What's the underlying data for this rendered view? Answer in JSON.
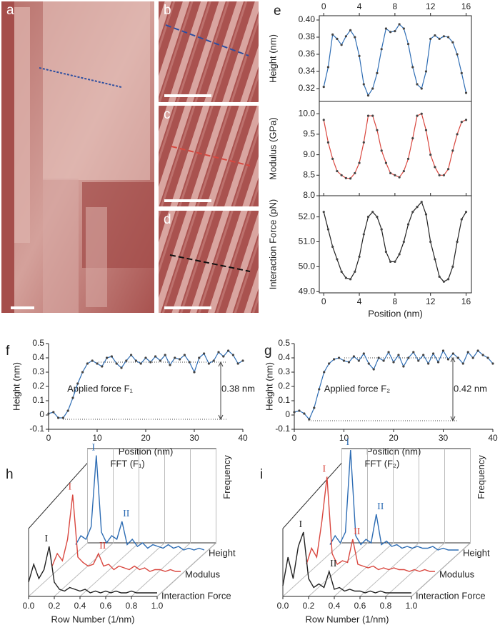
{
  "image_panels": [
    {
      "label": "a"
    },
    {
      "label": "b"
    },
    {
      "label": "c"
    },
    {
      "label": "d"
    }
  ],
  "chart_data": [
    {
      "type": "line",
      "panel_label": "e",
      "ylabel": "Height (nm)",
      "xaxis": "top",
      "x": [
        0,
        0.5,
        1,
        1.5,
        2,
        2.5,
        3,
        3.5,
        4,
        4.5,
        5,
        5.5,
        6,
        6.5,
        7,
        7.5,
        8,
        8.5,
        9,
        9.5,
        10,
        10.5,
        11,
        11.5,
        12,
        12.5,
        13,
        13.5,
        14,
        14.5,
        15,
        15.5,
        16
      ],
      "xlim": [
        -0.5,
        16.6
      ],
      "xticks": [
        0,
        4,
        8,
        12,
        16
      ],
      "ylim": [
        0.305,
        0.405
      ],
      "yticks": [
        0.32,
        0.34,
        0.36,
        0.38,
        {
          "value": 0.4,
          "label": "0.40"
        }
      ],
      "series": [
        {
          "name": "Height",
          "color": "#2e6db4",
          "values": [
            0.322,
            0.345,
            0.383,
            0.378,
            0.371,
            0.381,
            0.388,
            0.38,
            0.358,
            0.325,
            0.312,
            0.32,
            0.338,
            0.366,
            0.39,
            0.386,
            0.387,
            0.395,
            0.39,
            0.372,
            0.345,
            0.325,
            0.32,
            0.34,
            0.378,
            0.382,
            0.378,
            0.381,
            0.38,
            0.374,
            0.36,
            0.338,
            0.315
          ]
        }
      ]
    },
    {
      "type": "line",
      "ylabel": "Modulus (GPa)",
      "xaxis": "none",
      "x": [
        0,
        0.5,
        1,
        1.5,
        2,
        2.5,
        3,
        3.5,
        4,
        4.5,
        5,
        5.5,
        6,
        6.5,
        7,
        7.5,
        8,
        8.5,
        9,
        9.5,
        10,
        10.5,
        11,
        11.5,
        12,
        12.5,
        13,
        13.5,
        14,
        14.5,
        15,
        15.5,
        16
      ],
      "xlim": [
        -0.5,
        16.6
      ],
      "xticks": [
        0,
        4,
        8,
        12,
        16
      ],
      "ylim": [
        8.0,
        10.3
      ],
      "yticks": [
        {
          "value": 8,
          "label": "8.0"
        },
        8.5,
        {
          "value": 9,
          "label": "9.0"
        },
        9.5,
        {
          "value": 10,
          "label": "10.0"
        }
      ],
      "series": [
        {
          "name": "Modulus",
          "color": "#d9473f",
          "values": [
            9.85,
            9.3,
            8.9,
            8.6,
            8.5,
            8.43,
            8.42,
            8.55,
            8.8,
            9.3,
            9.95,
            9.95,
            9.6,
            9.1,
            8.8,
            8.55,
            8.5,
            8.45,
            8.6,
            8.9,
            9.4,
            9.95,
            10.0,
            9.6,
            9.0,
            8.7,
            8.5,
            8.5,
            8.65,
            9.1,
            9.5,
            9.8,
            9.85
          ]
        }
      ]
    },
    {
      "type": "line",
      "ylabel": "Interaction Force (pN)",
      "xlabel": "Position (nm)",
      "xaxis": "bottom",
      "x": [
        0,
        0.5,
        1,
        1.5,
        2,
        2.5,
        3,
        3.5,
        4,
        4.5,
        5,
        5.5,
        6,
        6.5,
        7,
        7.5,
        8,
        8.5,
        9,
        9.5,
        10,
        10.5,
        11,
        11.5,
        12,
        12.5,
        13,
        13.5,
        14,
        14.5,
        15,
        15.5,
        16
      ],
      "xlim": [
        -0.5,
        16.6
      ],
      "xticks": [
        0,
        4,
        8,
        12,
        16
      ],
      "ylim": [
        48.95,
        52.85
      ],
      "yticks": [
        {
          "value": 49,
          "label": "49.0"
        },
        {
          "value": 50,
          "label": "50.0"
        },
        {
          "value": 51,
          "label": "51.0"
        },
        {
          "value": 52,
          "label": "52.0"
        }
      ],
      "series": [
        {
          "name": "Interaction Force",
          "color": "#222222",
          "values": [
            52.2,
            51.5,
            50.8,
            50.3,
            49.8,
            49.55,
            49.5,
            49.8,
            50.4,
            51.3,
            52.0,
            52.2,
            52.0,
            51.5,
            50.6,
            50.2,
            50.2,
            50.5,
            51.0,
            51.7,
            52.2,
            52.4,
            52.6,
            52.1,
            51.0,
            50.3,
            49.6,
            49.4,
            49.5,
            50.0,
            51.0,
            51.9,
            52.2
          ]
        }
      ]
    },
    {
      "type": "line",
      "panel_label": "f",
      "ylabel": "Height (nm)",
      "xlabel": "Position (nm)",
      "xaxis": "bottom",
      "annotations": [
        "Applied force F₁",
        "0.38 nm"
      ],
      "hlines": [
        0.37,
        -0.03
      ],
      "x": [
        0,
        1,
        2,
        3,
        4,
        5,
        6,
        7,
        8,
        9,
        10,
        11,
        12,
        13,
        14,
        15,
        16,
        17,
        18,
        19,
        20,
        21,
        22,
        23,
        24,
        25,
        26,
        27,
        28,
        29,
        30,
        31,
        32,
        33,
        34,
        35,
        36,
        37,
        38,
        39,
        40
      ],
      "xlim": [
        0,
        40
      ],
      "xticks": [
        0,
        10,
        20,
        30,
        40
      ],
      "ylim": [
        -0.1,
        0.5
      ],
      "yticks": [
        -0.1,
        0,
        0.1,
        0.2,
        0.3,
        0.4,
        0.5
      ],
      "series": [
        {
          "name": "Height",
          "color": "#2e6db4",
          "values": [
            0.01,
            0.02,
            -0.02,
            -0.02,
            0.03,
            0.12,
            0.22,
            0.3,
            0.36,
            0.38,
            0.36,
            0.34,
            0.4,
            0.41,
            0.36,
            0.33,
            0.38,
            0.42,
            0.38,
            0.36,
            0.4,
            0.37,
            0.41,
            0.38,
            0.42,
            0.35,
            0.4,
            0.39,
            0.42,
            0.37,
            0.3,
            0.4,
            0.43,
            0.36,
            0.38,
            0.44,
            0.41,
            0.45,
            0.42,
            0.36,
            0.38
          ]
        }
      ]
    },
    {
      "type": "line",
      "panel_label": "g",
      "ylabel": "Height (nm)",
      "xlabel": "Position (nm)",
      "xaxis": "bottom",
      "annotations": [
        "Applied force F₂",
        "0.42 nm"
      ],
      "hlines": [
        0.4,
        -0.04
      ],
      "x": [
        0,
        1,
        2,
        3,
        4,
        5,
        6,
        7,
        8,
        9,
        10,
        11,
        12,
        13,
        14,
        15,
        16,
        17,
        18,
        19,
        20,
        21,
        22,
        23,
        24,
        25,
        26,
        27,
        28,
        29,
        30,
        31,
        32,
        33,
        34,
        35,
        36,
        37,
        38,
        39,
        40
      ],
      "xlim": [
        0,
        40
      ],
      "xticks": [
        0,
        10,
        20,
        30,
        40
      ],
      "ylim": [
        -0.1,
        0.5
      ],
      "yticks": [
        -0.1,
        0,
        0.1,
        0.2,
        0.3,
        0.4,
        0.5
      ],
      "series": [
        {
          "name": "Height",
          "color": "#2e6db4",
          "values": [
            0.02,
            0.03,
            0.01,
            -0.03,
            0.05,
            0.18,
            0.3,
            0.36,
            0.39,
            0.4,
            0.38,
            0.37,
            0.41,
            0.38,
            0.43,
            0.36,
            0.32,
            0.4,
            0.38,
            0.44,
            0.37,
            0.42,
            0.34,
            0.4,
            0.44,
            0.38,
            0.42,
            0.36,
            0.43,
            0.37,
            0.45,
            0.39,
            0.43,
            0.4,
            0.36,
            0.44,
            0.4,
            0.45,
            0.42,
            0.4,
            0.36
          ]
        }
      ]
    },
    {
      "type": "waterfall",
      "panel_label": "h",
      "title": "FFT (F₁)",
      "zlabel": "Frequency",
      "xlabel": "Row Number (1/nm)",
      "x": [
        0,
        0.04,
        0.08,
        0.12,
        0.16,
        0.2,
        0.24,
        0.28,
        0.32,
        0.36,
        0.4,
        0.44,
        0.48,
        0.52,
        0.56,
        0.6,
        0.64,
        0.68,
        0.72,
        0.76,
        0.8,
        0.84,
        0.88,
        0.92,
        0.96,
        1
      ],
      "xlim": [
        0,
        1
      ],
      "xticks": [
        {
          "value": 0,
          "label": "0.0"
        },
        0.2,
        0.4,
        0.6,
        0.8,
        {
          "value": 1,
          "label": "1.0"
        }
      ],
      "series": [
        {
          "name": "Height",
          "color": "#2e6db4",
          "peak_labels": [
            {
              "text": "I",
              "x": 0.16
            },
            {
              "text": "II",
              "x": 0.36
            }
          ],
          "values": [
            0.05,
            0.1,
            0.08,
            0.15,
            0.55,
            0.12,
            0.06,
            0.1,
            0.08,
            0.18,
            0.05,
            0.08,
            0.04,
            0.06,
            0.03,
            0.05,
            0.04,
            0.03,
            0.05,
            0.03,
            0.04,
            0.02,
            0.03,
            0.02,
            0.03,
            0.02
          ]
        },
        {
          "name": "Modulus",
          "color": "#d9473f",
          "peak_labels": [
            {
              "text": "I",
              "x": 0.16
            },
            {
              "text": "II",
              "x": 0.36
            }
          ],
          "values": [
            0.05,
            0.12,
            0.08,
            0.2,
            0.45,
            0.1,
            0.07,
            0.05,
            0.06,
            0.12,
            0.05,
            0.06,
            0.03,
            0.05,
            0.04,
            0.03,
            0.05,
            0.03,
            0.04,
            0.02,
            0.03,
            0.03,
            0.02,
            0.03,
            0.02,
            0.02
          ]
        },
        {
          "name": "Interaction Force",
          "color": "#222222",
          "peak_labels": [
            {
              "text": "I",
              "x": 0.16
            }
          ],
          "values": [
            0.08,
            0.18,
            0.1,
            0.15,
            0.28,
            0.08,
            0.04,
            0.03,
            0.05,
            0.04,
            0.03,
            0.04,
            0.02,
            0.03,
            0.02,
            0.03,
            0.02,
            0.03,
            0.02,
            0.02,
            0.03,
            0.02,
            0.02,
            0.02,
            0.02,
            0.02
          ]
        }
      ]
    },
    {
      "type": "waterfall",
      "panel_label": "i",
      "title": "FFT (F₂)",
      "zlabel": "Frequency",
      "xlabel": "Row Number (1/nm)",
      "x": [
        0,
        0.04,
        0.08,
        0.12,
        0.16,
        0.2,
        0.24,
        0.28,
        0.32,
        0.36,
        0.4,
        0.44,
        0.48,
        0.52,
        0.56,
        0.6,
        0.64,
        0.68,
        0.72,
        0.76,
        0.8,
        0.84,
        0.88,
        0.92,
        0.96,
        1
      ],
      "xlim": [
        0,
        1
      ],
      "xticks": [
        {
          "value": 0,
          "label": "0.0"
        },
        0.2,
        0.4,
        0.6,
        0.8,
        {
          "value": 1,
          "label": "1.0"
        }
      ],
      "series": [
        {
          "name": "Height",
          "color": "#2e6db4",
          "peak_labels": [
            {
              "text": "I",
              "x": 0.16
            },
            {
              "text": "II",
              "x": 0.36
            }
          ],
          "values": [
            0.05,
            0.1,
            0.06,
            0.12,
            0.58,
            0.1,
            0.05,
            0.08,
            0.06,
            0.22,
            0.05,
            0.07,
            0.04,
            0.05,
            0.03,
            0.04,
            0.03,
            0.04,
            0.03,
            0.03,
            0.04,
            0.02,
            0.03,
            0.02,
            0.02,
            0.02
          ]
        },
        {
          "name": "Modulus",
          "color": "#d9473f",
          "peak_labels": [
            {
              "text": "I",
              "x": 0.16
            },
            {
              "text": "II",
              "x": 0.36
            }
          ],
          "values": [
            0.06,
            0.15,
            0.1,
            0.3,
            0.55,
            0.12,
            0.06,
            0.08,
            0.07,
            0.2,
            0.06,
            0.05,
            0.04,
            0.05,
            0.03,
            0.04,
            0.03,
            0.04,
            0.03,
            0.03,
            0.02,
            0.03,
            0.02,
            0.03,
            0.02,
            0.02
          ]
        },
        {
          "name": "Interaction Force",
          "color": "#222222",
          "peak_labels": [
            {
              "text": "I",
              "x": 0.16
            },
            {
              "text": "II",
              "x": 0.36
            }
          ],
          "values": [
            0.06,
            0.22,
            0.1,
            0.28,
            0.36,
            0.1,
            0.05,
            0.07,
            0.05,
            0.14,
            0.04,
            0.05,
            0.03,
            0.04,
            0.03,
            0.03,
            0.02,
            0.03,
            0.02,
            0.03,
            0.02,
            0.02,
            0.02,
            0.02,
            0.02,
            0.02
          ]
        }
      ]
    }
  ]
}
